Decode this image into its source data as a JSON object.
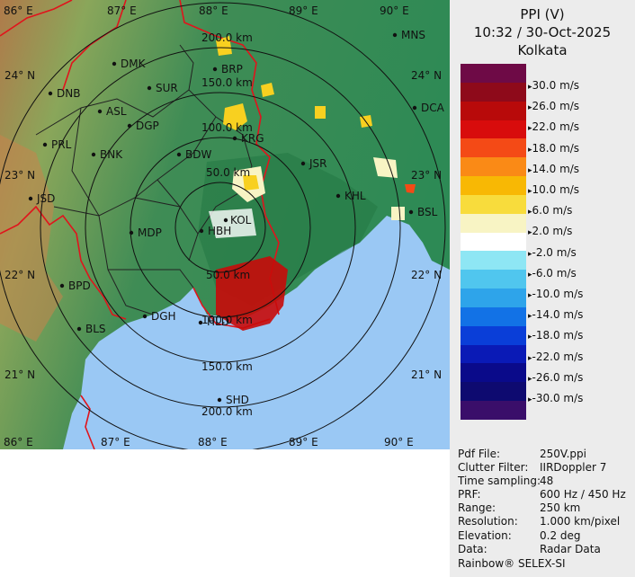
{
  "header": {
    "product": "PPI (V)",
    "datetime": "10:32 / 30-Oct-2025",
    "station": "Kolkata"
  },
  "legend": {
    "labels": [
      "30.0 m/s",
      "26.0 m/s",
      "22.0 m/s",
      "18.0 m/s",
      "14.0 m/s",
      "10.0 m/s",
      "6.0 m/s",
      "2.0 m/s",
      "-2.0 m/s",
      "-6.0 m/s",
      "-10.0 m/s",
      "-14.0 m/s",
      "-18.0 m/s",
      "-22.0 m/s",
      "-26.0 m/s",
      "-30.0 m/s"
    ],
    "colors": [
      "#6e0a46",
      "#8e0a1a",
      "#b80a0a",
      "#d80c0c",
      "#f44a16",
      "#fa8a16",
      "#f8b804",
      "#f8dc3c",
      "#f8f4c4",
      "#ffffff",
      "#8ee6f4",
      "#50c6ee",
      "#2ea4ea",
      "#1272e6",
      "#0a3ed8",
      "#0a1ab6",
      "#0a0a8a",
      "#0e0a70",
      "#3a0e6a"
    ]
  },
  "map": {
    "lon_labels": [
      "86° E",
      "87° E",
      "88° E",
      "89° E",
      "90° E"
    ],
    "lat_labels": [
      "24° N",
      "23° N",
      "22° N",
      "21° N"
    ],
    "range_labels": [
      "50.0 km",
      "100.0 km",
      "150.0 km",
      "200.0 km"
    ],
    "stations": [
      {
        "code": "MNS"
      },
      {
        "code": "DMK"
      },
      {
        "code": "BRP"
      },
      {
        "code": "DNB"
      },
      {
        "code": "SUR"
      },
      {
        "code": "ASL"
      },
      {
        "code": "DGP"
      },
      {
        "code": "PRL"
      },
      {
        "code": "BNK"
      },
      {
        "code": "BDW"
      },
      {
        "code": "KRG"
      },
      {
        "code": "JSR"
      },
      {
        "code": "KHL"
      },
      {
        "code": "DCA"
      },
      {
        "code": "BSL"
      },
      {
        "code": "JSD"
      },
      {
        "code": "MDP"
      },
      {
        "code": "HBH"
      },
      {
        "code": "BPD"
      },
      {
        "code": "BLS"
      },
      {
        "code": "DGH"
      },
      {
        "code": "SHD"
      },
      {
        "code": "HLD"
      },
      {
        "code": "KOL"
      }
    ]
  },
  "info": [
    {
      "key": "Pdf File:",
      "value": "250V.ppi"
    },
    {
      "key": "Clutter Filter:",
      "value": "IIRDoppler 7"
    },
    {
      "key": "Time sampling:",
      "value": "48"
    },
    {
      "key": "PRF:",
      "value": "600 Hz / 450 Hz"
    },
    {
      "key": "Range:",
      "value": "250 km"
    },
    {
      "key": "Resolution:",
      "value": "1.000 km/pixel"
    },
    {
      "key": "Elevation:",
      "value": "0.2 deg"
    },
    {
      "key": "Data:",
      "value": "Radar Data"
    }
  ],
  "credit": "Rainbow® SELEX-SI"
}
